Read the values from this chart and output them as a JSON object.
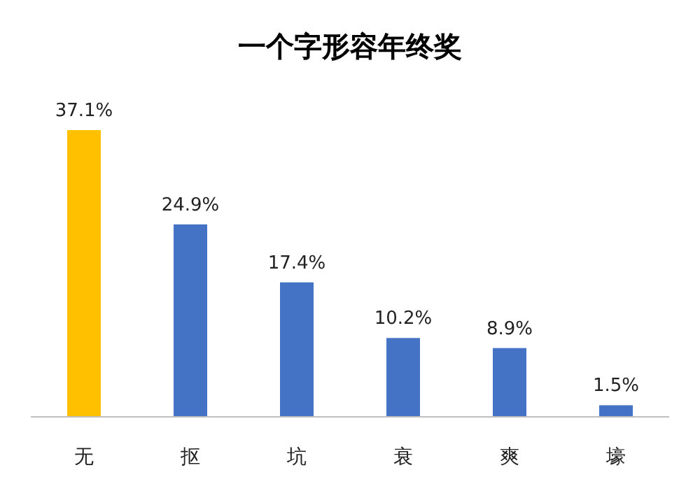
{
  "chart_data": {
    "type": "bar",
    "title": "一个字形容年终奖",
    "categories": [
      "无",
      "抠",
      "坑",
      "衰",
      "爽",
      "壕"
    ],
    "values": [
      37.1,
      24.9,
      17.4,
      10.2,
      8.9,
      1.5
    ],
    "value_labels": [
      "37.1%",
      "24.9%",
      "17.4%",
      "10.2%",
      "8.9%",
      "1.5%"
    ],
    "colors": [
      "#ffc000",
      "#4472c4",
      "#4472c4",
      "#4472c4",
      "#4472c4",
      "#4472c4"
    ]
  }
}
